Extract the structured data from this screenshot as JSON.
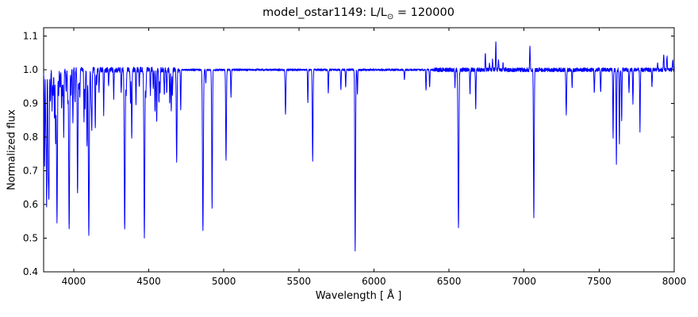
{
  "figure": {
    "title_main": "model_ostar1149: L/L",
    "title_sub": "⊙",
    "title_rest": " = 120000"
  },
  "chart_data": {
    "type": "line",
    "title": "model_ostar1149: L/L⊙ = 120000",
    "xlabel": "Wavelength [ Å ]",
    "ylabel": "Normalized flux",
    "xlim": [
      3800,
      8000
    ],
    "ylim": [
      0.4,
      1.125
    ],
    "xticks": [
      4000,
      4500,
      5000,
      5500,
      6000,
      6500,
      7000,
      7500,
      8000
    ],
    "xtick_labels": [
      "4000",
      "4500",
      "5000",
      "5500",
      "6000",
      "6500",
      "7000",
      "7500",
      "8000"
    ],
    "yticks": [
      0.4,
      0.5,
      0.6,
      0.7,
      0.8,
      0.9,
      1.0,
      1.1
    ],
    "ytick_labels": [
      "0.4",
      "0.5",
      "0.6",
      "0.7",
      "0.8",
      "0.9",
      "1.0",
      "1.1"
    ],
    "line_color": "#0000ff",
    "axes_color": "#000000",
    "continuum": 1.0,
    "grid": false,
    "legend": false,
    "noise_regions": [
      [
        3800,
        4700,
        0.008
      ],
      [
        4700,
        6400,
        0.003
      ],
      [
        6400,
        8000,
        0.006
      ]
    ],
    "features_note": "Each feature is [wavelength_angstrom, min_or_max_flux, sigma_angstrom]; flux<1 = absorption line, flux>1 = emission spike",
    "features": [
      [
        3806,
        0.72,
        2
      ],
      [
        3815,
        0.82,
        2
      ],
      [
        3820,
        0.6,
        2
      ],
      [
        3830,
        0.75,
        2
      ],
      [
        3835,
        0.62,
        2.5
      ],
      [
        3845,
        0.9,
        2
      ],
      [
        3856,
        0.88,
        2
      ],
      [
        3863,
        0.92,
        2
      ],
      [
        3872,
        0.85,
        2
      ],
      [
        3880,
        0.78,
        2
      ],
      [
        3889,
        0.55,
        3
      ],
      [
        3900,
        0.93,
        2
      ],
      [
        3910,
        0.95,
        2
      ],
      [
        3920,
        0.88,
        2
      ],
      [
        3927,
        0.92,
        2
      ],
      [
        3934,
        0.8,
        2
      ],
      [
        3950,
        0.94,
        2
      ],
      [
        3961,
        0.9,
        2
      ],
      [
        3970,
        0.52,
        3
      ],
      [
        3983,
        0.93,
        2
      ],
      [
        3995,
        0.85,
        2
      ],
      [
        4009,
        0.9,
        2
      ],
      [
        4026,
        0.63,
        2.5
      ],
      [
        4035,
        0.95,
        2
      ],
      [
        4041,
        0.92,
        2
      ],
      [
        4069,
        0.85,
        2
      ],
      [
        4076,
        0.88,
        2
      ],
      [
        4089,
        0.77,
        2
      ],
      [
        4101,
        0.5,
        3
      ],
      [
        4116,
        0.9,
        2
      ],
      [
        4121,
        0.83,
        2
      ],
      [
        4144,
        0.82,
        2
      ],
      [
        4153,
        0.95,
        2
      ],
      [
        4169,
        0.93,
        2
      ],
      [
        4200,
        0.87,
        2
      ],
      [
        4233,
        0.95,
        2
      ],
      [
        4267,
        0.92,
        2
      ],
      [
        4317,
        0.93,
        2
      ],
      [
        4340,
        0.52,
        3
      ],
      [
        4350,
        0.93,
        2
      ],
      [
        4379,
        0.9,
        2
      ],
      [
        4387,
        0.79,
        2
      ],
      [
        4415,
        0.9,
        2
      ],
      [
        4437,
        0.95,
        2
      ],
      [
        4471,
        0.5,
        3
      ],
      [
        4481,
        0.92,
        2
      ],
      [
        4511,
        0.93,
        2
      ],
      [
        4530,
        0.94,
        2
      ],
      [
        4542,
        0.87,
        2
      ],
      [
        4553,
        0.84,
        2
      ],
      [
        4568,
        0.9,
        2
      ],
      [
        4575,
        0.93,
        2
      ],
      [
        4604,
        0.92,
        2
      ],
      [
        4620,
        0.93,
        2
      ],
      [
        4640,
        0.9,
        2
      ],
      [
        4650,
        0.88,
        2
      ],
      [
        4658,
        0.93,
        2
      ],
      [
        4686,
        0.72,
        2.5
      ],
      [
        4713,
        0.88,
        2
      ],
      [
        4861,
        0.52,
        3
      ],
      [
        4880,
        0.96,
        2
      ],
      [
        4922,
        0.59,
        2.5
      ],
      [
        5015,
        0.73,
        2.5
      ],
      [
        5048,
        0.92,
        2
      ],
      [
        5411,
        0.87,
        2.5
      ],
      [
        5560,
        0.9,
        2
      ],
      [
        5592,
        0.73,
        2.5
      ],
      [
        5696,
        0.93,
        2
      ],
      [
        5780,
        0.94,
        2
      ],
      [
        5812,
        0.95,
        2
      ],
      [
        5875,
        0.46,
        2.5
      ],
      [
        5890,
        0.93,
        2
      ],
      [
        6203,
        0.97,
        2
      ],
      [
        6347,
        0.94,
        2
      ],
      [
        6371,
        0.95,
        2
      ],
      [
        6540,
        0.95,
        2
      ],
      [
        6563,
        0.53,
        3
      ],
      [
        6640,
        0.93,
        2
      ],
      [
        6678,
        0.88,
        2
      ],
      [
        6742,
        1.05,
        2
      ],
      [
        6770,
        1.02,
        2
      ],
      [
        6790,
        1.03,
        2
      ],
      [
        6812,
        1.08,
        2
      ],
      [
        6830,
        1.03,
        2
      ],
      [
        6860,
        1.02,
        2
      ],
      [
        7039,
        1.075,
        2
      ],
      [
        7065,
        0.56,
        2.5
      ],
      [
        7281,
        0.87,
        2.5
      ],
      [
        7320,
        0.95,
        2
      ],
      [
        7468,
        0.93,
        2
      ],
      [
        7510,
        0.93,
        2
      ],
      [
        7593,
        0.8,
        2
      ],
      [
        7615,
        0.72,
        2
      ],
      [
        7635,
        0.78,
        2
      ],
      [
        7650,
        0.85,
        2
      ],
      [
        7699,
        0.93,
        2
      ],
      [
        7725,
        0.9,
        2
      ],
      [
        7772,
        0.82,
        2
      ],
      [
        7852,
        0.95,
        2
      ],
      [
        7890,
        1.02,
        2
      ],
      [
        7930,
        1.05,
        2
      ],
      [
        7952,
        1.04,
        2
      ],
      [
        7990,
        1.03,
        2
      ]
    ]
  }
}
